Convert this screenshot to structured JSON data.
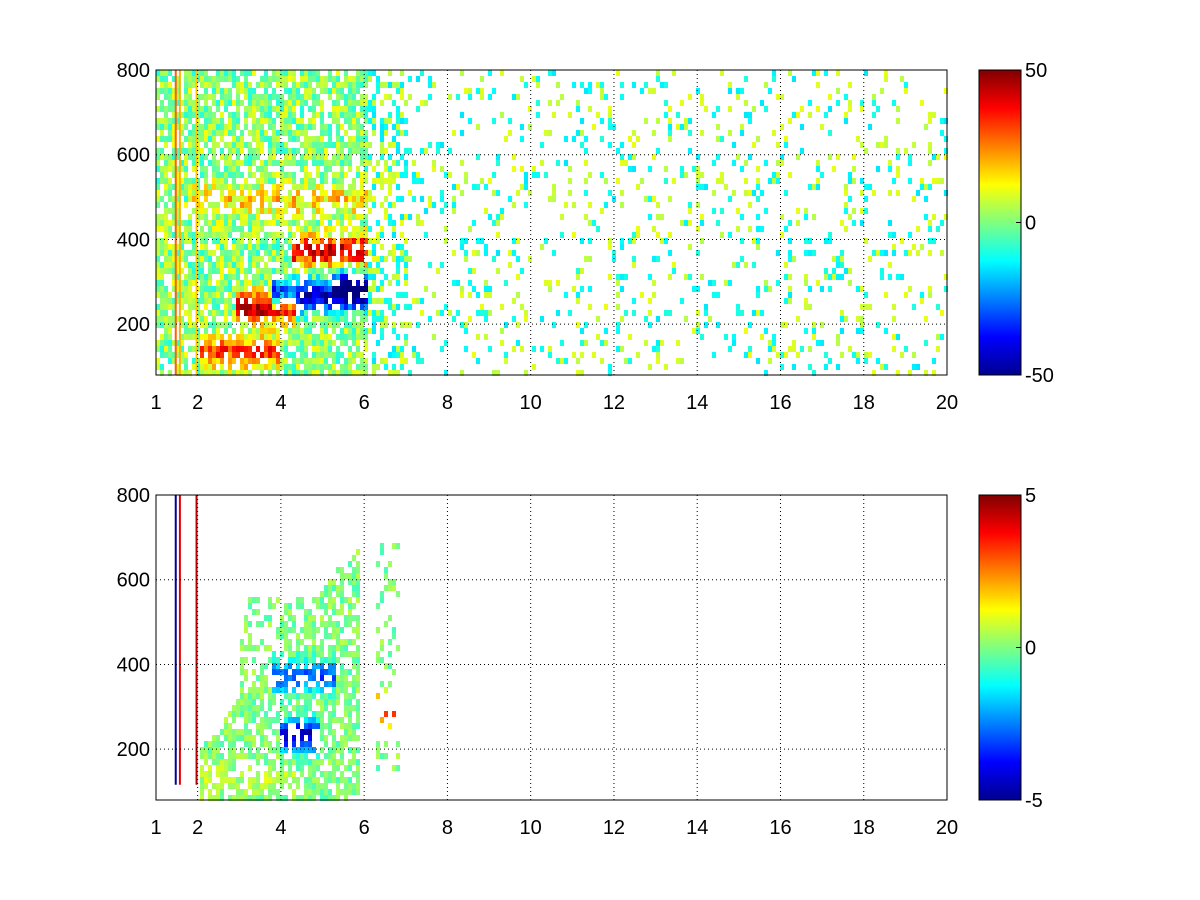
{
  "chart_data": [
    {
      "type": "heatmap",
      "title": "",
      "xlabel": "",
      "ylabel": "",
      "xlim": [
        1,
        20
      ],
      "ylim": [
        80,
        800
      ],
      "x_ticks": [
        1,
        2,
        4,
        6,
        8,
        10,
        12,
        14,
        16,
        18,
        20
      ],
      "y_ticks": [
        200,
        400,
        600,
        800
      ],
      "grid": true,
      "colormap": "jet",
      "colorbar": {
        "ticks": [
          50,
          0,
          -50
        ],
        "range": [
          -50,
          50
        ]
      },
      "features": [
        {
          "x": [
            2.3,
            3.6
          ],
          "y": 140,
          "value": 30
        },
        {
          "x": [
            3.2,
            4.0
          ],
          "y": 245,
          "value": 45
        },
        {
          "x": [
            4.0,
            5.7
          ],
          "y": 275,
          "value": -45
        },
        {
          "x": [
            4.5,
            5.8
          ],
          "y": 380,
          "value": 40
        },
        {
          "x": [
            5.5,
            6.6
          ],
          "y": 300,
          "value": -30
        },
        {
          "x": [
            2.0,
            5.8
          ],
          "y": 500,
          "value": 15
        }
      ]
    },
    {
      "type": "heatmap",
      "title": "",
      "xlabel": "",
      "ylabel": "",
      "xlim": [
        1,
        20
      ],
      "ylim": [
        80,
        800
      ],
      "x_ticks": [
        1,
        2,
        4,
        6,
        8,
        10,
        12,
        14,
        16,
        18,
        20
      ],
      "y_ticks": [
        200,
        400,
        600,
        800
      ],
      "grid": true,
      "colormap": "jet",
      "colorbar": {
        "ticks": [
          5,
          0,
          -5
        ],
        "range": [
          -5,
          5
        ]
      },
      "features": [
        {
          "x": [
            2.0,
            4.0
          ],
          "y": 140,
          "value": 0.5
        },
        {
          "x": [
            3.0,
            5.8
          ],
          "y": 250,
          "value": 0
        },
        {
          "x": [
            4.0,
            5.0
          ],
          "y": 380,
          "value": -3
        },
        {
          "x": [
            4.2,
            4.6
          ],
          "y": 240,
          "value": -4.5
        },
        {
          "x": [
            6.4,
            6.8
          ],
          "y": 300,
          "value": 4
        }
      ]
    }
  ]
}
